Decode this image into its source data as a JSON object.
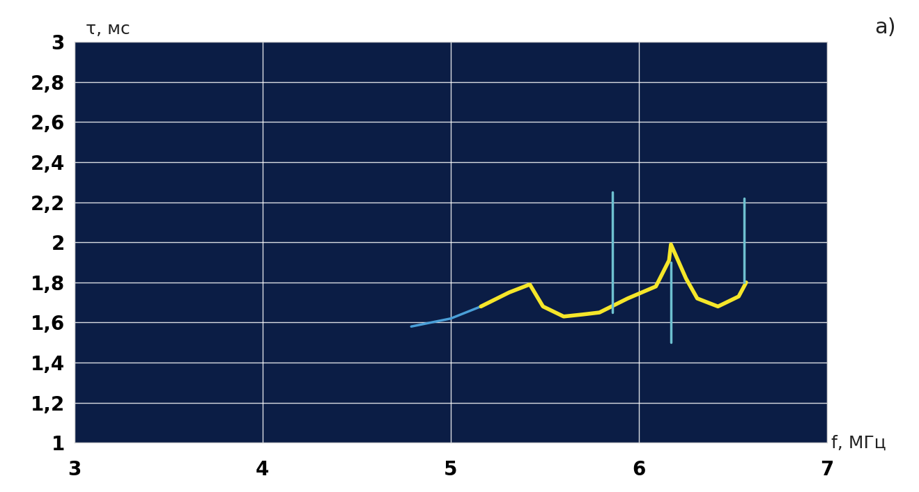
{
  "chart_data": {
    "type": "line",
    "x_label": "f, МГц",
    "y_label": "τ, мс",
    "annotations": [
      "a)"
    ],
    "series": [
      {
        "color": "#4a9fd8",
        "x": [
          4.79,
          5.0,
          5.16
        ],
        "values": [
          1.58,
          1.62,
          1.68
        ]
      },
      {
        "color": "#f5e62a",
        "x": [
          5.16,
          5.31,
          5.42,
          5.49,
          5.6,
          5.7,
          5.79,
          5.94,
          6.09,
          6.16,
          6.17,
          6.25,
          6.31,
          6.42,
          6.53,
          6.57
        ],
        "values": [
          1.68,
          1.75,
          1.79,
          1.68,
          1.63,
          1.64,
          1.65,
          1.72,
          1.78,
          1.91,
          1.99,
          1.82,
          1.72,
          1.68,
          1.73,
          1.8
        ]
      },
      {
        "color": "#6ec0d0",
        "x": [
          5.86,
          5.86
        ],
        "values": [
          1.65,
          2.25
        ]
      },
      {
        "color": "#6ec0d0",
        "x": [
          6.56,
          6.56
        ],
        "values": [
          1.8,
          2.22
        ]
      },
      {
        "color": "#6ec0d0",
        "x": [
          6.17,
          6.17
        ],
        "values": [
          1.5,
          1.9
        ]
      }
    ],
    "xlim": [
      3,
      7
    ],
    "ylim": [
      1,
      3
    ],
    "xticks": [
      3,
      4,
      5,
      6,
      7
    ],
    "yticks": [
      1,
      {
        "value": 1.2,
        "label": "1,2"
      },
      {
        "value": 1.4,
        "label": "1,4"
      },
      {
        "value": 1.6,
        "label": "1,6"
      },
      {
        "value": 1.8,
        "label": "1,8"
      },
      2,
      {
        "value": 2.2,
        "label": "2,2"
      },
      {
        "value": 2.4,
        "label": "2,4"
      },
      {
        "value": 2.6,
        "label": "2,6"
      },
      {
        "value": 2.8,
        "label": "2,8"
      },
      3
    ],
    "grid": true
  }
}
